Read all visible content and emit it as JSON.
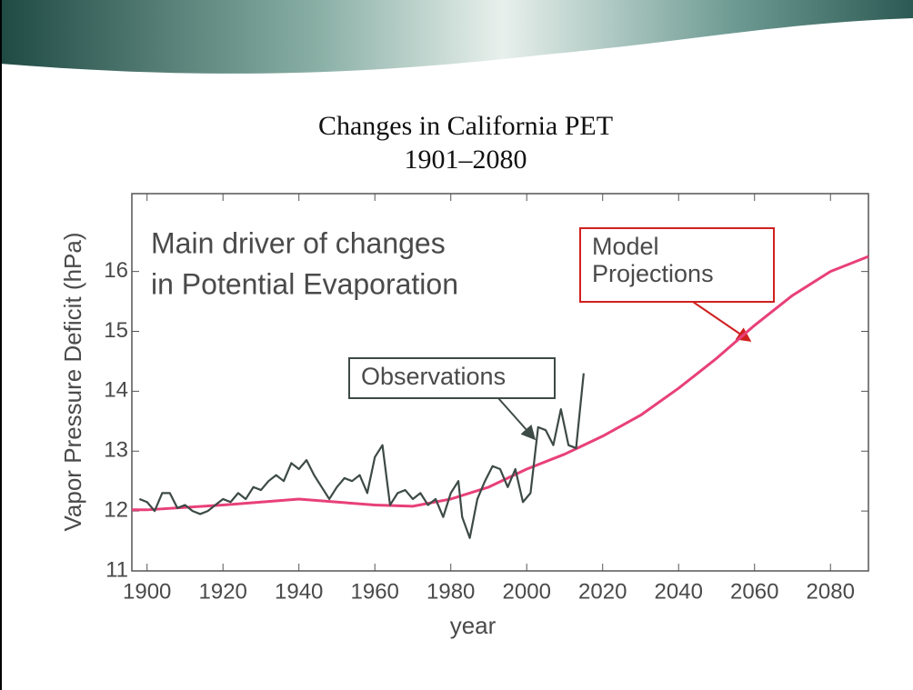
{
  "chart_data": {
    "type": "line",
    "title": "Changes in California PET",
    "subtitle": "1901–2080",
    "xlabel": "year",
    "ylabel": "Vapor Pressure Deficit (hPa)",
    "annotation": [
      "Main driver of changes",
      "in Potential Evaporation"
    ],
    "xlim": [
      1896,
      2090
    ],
    "ylim": [
      11,
      17.3
    ],
    "xticks": [
      1900,
      1920,
      1940,
      1960,
      1980,
      2000,
      2020,
      2040,
      2060,
      2080
    ],
    "yticks": [
      11,
      12,
      13,
      14,
      15,
      16
    ],
    "series": [
      {
        "name": "Observations",
        "color": "#3d4a46",
        "x": [
          1898,
          1900,
          1902,
          1904,
          1906,
          1908,
          1910,
          1912,
          1914,
          1916,
          1918,
          1920,
          1922,
          1924,
          1926,
          1928,
          1930,
          1932,
          1934,
          1936,
          1938,
          1940,
          1942,
          1944,
          1946,
          1948,
          1950,
          1952,
          1954,
          1956,
          1958,
          1960,
          1962,
          1964,
          1966,
          1968,
          1970,
          1972,
          1974,
          1976,
          1978,
          1980,
          1982,
          1983,
          1985,
          1987,
          1989,
          1991,
          1993,
          1995,
          1997,
          1999,
          2001,
          2003,
          2005,
          2007,
          2009,
          2011,
          2013,
          2015
        ],
        "values": [
          12.2,
          12.15,
          12.0,
          12.3,
          12.3,
          12.05,
          12.1,
          12.0,
          11.95,
          12.0,
          12.1,
          12.2,
          12.15,
          12.3,
          12.2,
          12.4,
          12.35,
          12.5,
          12.6,
          12.5,
          12.8,
          12.7,
          12.85,
          12.6,
          12.4,
          12.2,
          12.4,
          12.55,
          12.5,
          12.6,
          12.3,
          12.9,
          13.1,
          12.1,
          12.3,
          12.35,
          12.2,
          12.3,
          12.1,
          12.2,
          11.9,
          12.3,
          12.5,
          11.9,
          11.55,
          12.2,
          12.5,
          12.75,
          12.7,
          12.4,
          12.7,
          12.15,
          12.3,
          13.4,
          13.35,
          13.1,
          13.7,
          13.1,
          13.05,
          14.3
        ]
      },
      {
        "name": "Model Projections",
        "color": "#e8407a",
        "x": [
          1896,
          1900,
          1920,
          1940,
          1960,
          1970,
          1980,
          1990,
          2000,
          2010,
          2020,
          2030,
          2040,
          2050,
          2060,
          2070,
          2080,
          2090
        ],
        "values": [
          12.02,
          12.02,
          12.1,
          12.2,
          12.1,
          12.08,
          12.2,
          12.4,
          12.7,
          12.95,
          13.25,
          13.6,
          14.05,
          14.55,
          15.1,
          15.6,
          16.0,
          16.25
        ]
      }
    ]
  }
}
